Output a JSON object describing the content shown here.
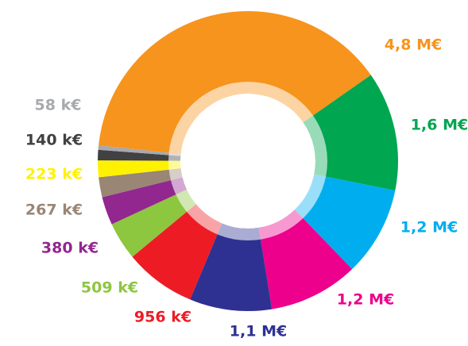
{
  "chart_data": {
    "type": "pie",
    "donut": true,
    "values": [
      4800000,
      1600000,
      1200000,
      1200000,
      1100000,
      956000,
      509000,
      380000,
      267000,
      223000,
      140000,
      58000
    ],
    "value_labels": [
      "4,8 M€",
      "1,6 M€",
      "1,2 M€",
      "1,2 M€",
      "1,1 M€",
      "956 k€",
      "509 k€",
      "380 k€",
      "267 k€",
      "223 k€",
      "140 k€",
      "58 k€"
    ],
    "colors": [
      "#f7941d",
      "#00a650",
      "#00aeef",
      "#ec008c",
      "#2e3192",
      "#ed1c24",
      "#8dc63f",
      "#92278f",
      "#998675",
      "#fff200",
      "#414042",
      "#a7a9ac"
    ]
  }
}
